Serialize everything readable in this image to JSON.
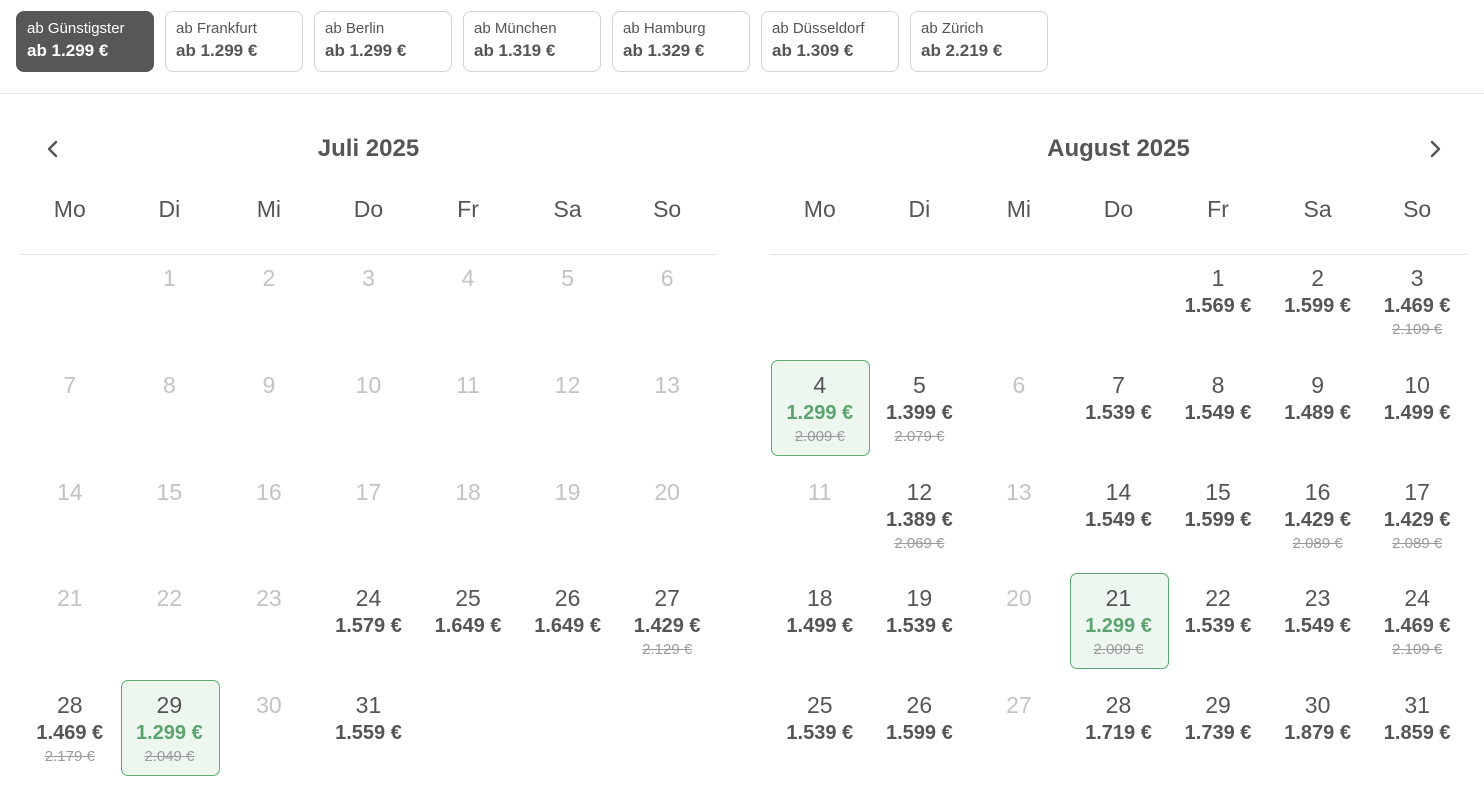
{
  "filters": [
    {
      "label": "ab Günstigster",
      "price": "ab 1.299 €",
      "active": true
    },
    {
      "label": "ab Frankfurt",
      "price": "ab 1.299 €",
      "active": false
    },
    {
      "label": "ab Berlin",
      "price": "ab 1.299 €",
      "active": false
    },
    {
      "label": "ab München",
      "price": "ab 1.319 €",
      "active": false
    },
    {
      "label": "ab Hamburg",
      "price": "ab 1.329 €",
      "active": false
    },
    {
      "label": "ab Düsseldorf",
      "price": "ab 1.309 €",
      "active": false
    },
    {
      "label": "ab Zürich",
      "price": "ab 2.219 €",
      "active": false
    }
  ],
  "icons": {
    "prev": "chevron-left-icon",
    "next": "chevron-right-icon"
  },
  "colors": {
    "active_chip": "#575757",
    "best_price": "#5ba46f",
    "best_border": "#5cab73",
    "best_bg": "#eef6f0",
    "disabled_day": "#c3c3c3"
  },
  "weekdays": [
    "Mo",
    "Di",
    "Mi",
    "Do",
    "Fr",
    "Sa",
    "So"
  ],
  "months": [
    {
      "title": "Juli 2025",
      "offset": 1,
      "days": [
        {
          "d": "1"
        },
        {
          "d": "2"
        },
        {
          "d": "3"
        },
        {
          "d": "4"
        },
        {
          "d": "5"
        },
        {
          "d": "6"
        },
        {
          "d": "7"
        },
        {
          "d": "8"
        },
        {
          "d": "9"
        },
        {
          "d": "10"
        },
        {
          "d": "11"
        },
        {
          "d": "12"
        },
        {
          "d": "13"
        },
        {
          "d": "14"
        },
        {
          "d": "15"
        },
        {
          "d": "16"
        },
        {
          "d": "17"
        },
        {
          "d": "18"
        },
        {
          "d": "19"
        },
        {
          "d": "20"
        },
        {
          "d": "21"
        },
        {
          "d": "22"
        },
        {
          "d": "23"
        },
        {
          "d": "24",
          "p": "1.579 €"
        },
        {
          "d": "25",
          "p": "1.649 €"
        },
        {
          "d": "26",
          "p": "1.649 €"
        },
        {
          "d": "27",
          "p": "1.429 €",
          "o": "2.129 €"
        },
        {
          "d": "28",
          "p": "1.469 €",
          "o": "2.179 €"
        },
        {
          "d": "29",
          "p": "1.299 €",
          "o": "2.049 €",
          "best": true
        },
        {
          "d": "30"
        },
        {
          "d": "31",
          "p": "1.559 €"
        }
      ]
    },
    {
      "title": "August 2025",
      "offset": 4,
      "days": [
        {
          "d": "1",
          "p": "1.569 €"
        },
        {
          "d": "2",
          "p": "1.599 €"
        },
        {
          "d": "3",
          "p": "1.469 €",
          "o": "2.109 €"
        },
        {
          "d": "4",
          "p": "1.299 €",
          "o": "2.009 €",
          "best": true
        },
        {
          "d": "5",
          "p": "1.399 €",
          "o": "2.079 €"
        },
        {
          "d": "6"
        },
        {
          "d": "7",
          "p": "1.539 €"
        },
        {
          "d": "8",
          "p": "1.549 €"
        },
        {
          "d": "9",
          "p": "1.489 €"
        },
        {
          "d": "10",
          "p": "1.499 €"
        },
        {
          "d": "11"
        },
        {
          "d": "12",
          "p": "1.389 €",
          "o": "2.069 €"
        },
        {
          "d": "13"
        },
        {
          "d": "14",
          "p": "1.549 €"
        },
        {
          "d": "15",
          "p": "1.599 €"
        },
        {
          "d": "16",
          "p": "1.429 €",
          "o": "2.089 €"
        },
        {
          "d": "17",
          "p": "1.429 €",
          "o": "2.089 €"
        },
        {
          "d": "18",
          "p": "1.499 €"
        },
        {
          "d": "19",
          "p": "1.539 €"
        },
        {
          "d": "20"
        },
        {
          "d": "21",
          "p": "1.299 €",
          "o": "2.009 €",
          "best": true
        },
        {
          "d": "22",
          "p": "1.539 €"
        },
        {
          "d": "23",
          "p": "1.549 €"
        },
        {
          "d": "24",
          "p": "1.469 €",
          "o": "2.109 €"
        },
        {
          "d": "25",
          "p": "1.539 €"
        },
        {
          "d": "26",
          "p": "1.599 €"
        },
        {
          "d": "27"
        },
        {
          "d": "28",
          "p": "1.719 €"
        },
        {
          "d": "29",
          "p": "1.739 €"
        },
        {
          "d": "30",
          "p": "1.879 €"
        },
        {
          "d": "31",
          "p": "1.859 €"
        }
      ]
    }
  ]
}
